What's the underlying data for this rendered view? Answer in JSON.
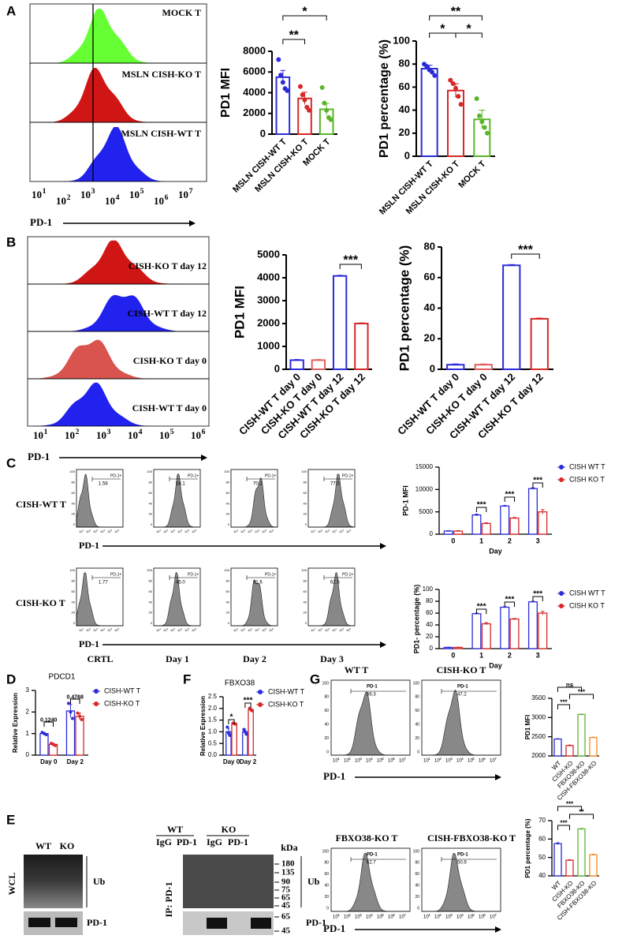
{
  "panel_labels": [
    "A",
    "B",
    "C",
    "D",
    "F",
    "G",
    "E"
  ],
  "flow": {
    "A": {
      "labels": [
        "MOCK T",
        "MSLN CISH-KO T",
        "MSLN CISH-WT T"
      ],
      "axis_label": "PD-1",
      "tick_base": "10",
      "tick_exps": [
        "1",
        "2",
        "3",
        "4",
        "5",
        "6",
        "7"
      ]
    },
    "B": {
      "labels": [
        "CISH-KO T day 12",
        "CISH-WT T day 12",
        "CISH-KO T day 0",
        "CISH-WT T day 0"
      ],
      "axis_label": "PD-1",
      "tick_base": "10",
      "tick_exps": [
        "1",
        "2",
        "3",
        "4",
        "5",
        "6"
      ]
    },
    "C": {
      "rows": [
        "CISH-WT T",
        "CISH-KO T"
      ],
      "columns": [
        "CRTL",
        "Day 1",
        "Day 2",
        "Day 3"
      ],
      "gate_label": "PD-1+",
      "gates": [
        [
          "1.58",
          "58.1",
          "70.2",
          "77.5"
        ],
        [
          "1.77",
          "45.0",
          "51.6",
          "62.5"
        ]
      ],
      "axis_label": "PD-1",
      "y_ticks": [
        "100",
        "80",
        "60",
        "40",
        "20",
        "0"
      ],
      "tick_base": "10",
      "tick_exps": [
        "1",
        "2",
        "3",
        "4",
        "5",
        "6"
      ]
    },
    "G": {
      "panels": [
        "WT T",
        "CISH-KO T",
        "FBXO38-KO T",
        "CISH-FBXO38-KO T"
      ],
      "gate_label": "PD-1",
      "gates": [
        "56.3",
        "47.2",
        "62.7",
        "50.9"
      ],
      "axis_label": "PD-1",
      "y_ticks": [
        "100",
        "80",
        "60",
        "40",
        "20",
        "0"
      ],
      "tick_base": "10",
      "tick_exps": [
        "1",
        "2",
        "3",
        "4",
        "5",
        "6",
        "7"
      ]
    }
  },
  "blot": {
    "left": {
      "lanes": [
        "WT",
        "KO"
      ],
      "side": "WCL",
      "upper": "Ub",
      "lower": "PD-1"
    },
    "right": {
      "groups": [
        "WT",
        "KO"
      ],
      "lanes": [
        "IgG",
        "PD-1",
        "IgG",
        "PD-1"
      ],
      "unit": "kDa",
      "upper_markers": [
        "180",
        "135",
        "90",
        "75",
        "65",
        "45"
      ],
      "lower_markers": [
        "65",
        "45"
      ],
      "side": "IP: PD-1",
      "upper": "Ub",
      "lower": "PD-1"
    }
  },
  "chart_data": [
    {
      "type": "bar",
      "ylabel": "PD1 MFI",
      "categories": [
        "MSLN CISH-WT T",
        "MSLN CISH-KO T",
        "MOCK T"
      ],
      "colors": [
        "#2b2bd9",
        "#d62828",
        "#5ab52a"
      ],
      "values": [
        5500,
        3450,
        2400
      ],
      "errors": [
        650,
        600,
        550
      ],
      "points": [
        [
          7200,
          5700,
          5000,
          4400,
          4200
        ],
        [
          4600,
          3800,
          3300,
          2600,
          2300
        ],
        [
          4500,
          3000,
          2300,
          1600,
          1400
        ]
      ],
      "ylim": [
        0,
        8000
      ],
      "yticks": [
        0,
        2000,
        4000,
        6000,
        8000
      ],
      "annotations": [
        "**",
        "*"
      ]
    },
    {
      "type": "bar",
      "ylabel": "PD1 percentage (%)",
      "categories": [
        "MSLN CISH-WT T",
        "MSLN CISH-KO T",
        "MOCK T"
      ],
      "colors": [
        "#2b2bd9",
        "#d62828",
        "#5ab52a"
      ],
      "values": [
        76,
        57,
        32
      ],
      "errors": [
        3,
        6,
        8
      ],
      "points": [
        [
          80,
          78,
          75,
          73,
          70
        ],
        [
          66,
          63,
          59,
          52,
          45
        ],
        [
          50,
          35,
          30,
          25,
          20
        ]
      ],
      "ylim": [
        0,
        100
      ],
      "yticks": [
        0,
        20,
        40,
        60,
        80,
        100
      ],
      "annotations": [
        "*",
        "*",
        "**"
      ]
    },
    {
      "type": "bar",
      "ylabel": "PD1 MFI",
      "categories": [
        "CISH-WT T day 0",
        "CISH-KO T day 0",
        "CISH-WT T day 12",
        "CISH-KO T day 12"
      ],
      "colors": [
        "#2b2bd9",
        "#e06060",
        "#2b2bd9",
        "#d62828"
      ],
      "values": [
        400,
        400,
        4080,
        2000
      ],
      "errors": [
        30,
        30,
        30,
        30
      ],
      "ylim": [
        0,
        5000
      ],
      "yticks": [
        0,
        1000,
        2000,
        3000,
        4000,
        5000
      ],
      "annotations": [
        "***"
      ]
    },
    {
      "type": "bar",
      "ylabel": "PD1 percentage (%)",
      "categories": [
        "CISH-WT T day 0",
        "CISH-KO T day 0",
        "CISH-WT T day 12",
        "CISH-KO T day 12"
      ],
      "colors": [
        "#2b2bd9",
        "#e06060",
        "#2b2bd9",
        "#d62828"
      ],
      "values": [
        3,
        3,
        68,
        33
      ],
      "errors": [
        0.5,
        0.5,
        0.5,
        0.5
      ],
      "ylim": [
        0,
        80
      ],
      "yticks": [
        0,
        20,
        40,
        60,
        80
      ],
      "annotations": [
        "***"
      ]
    },
    {
      "type": "bar",
      "ylabel": "PD-1 MFI",
      "xlabel": "Day",
      "categories": [
        "0",
        "1",
        "2",
        "3"
      ],
      "series": [
        {
          "name": "CISH WT T",
          "color": "#2b2bd9",
          "values": [
            700,
            4300,
            6300,
            10200
          ],
          "errors": [
            100,
            200,
            150,
            200
          ]
        },
        {
          "name": "CISH KO T",
          "color": "#d62828",
          "values": [
            700,
            2400,
            3600,
            5000
          ],
          "errors": [
            100,
            150,
            150,
            500
          ]
        }
      ],
      "ylim": [
        0,
        15000
      ],
      "yticks": [
        0,
        5000,
        10000,
        15000
      ],
      "annotations": [
        "***",
        "***",
        "***"
      ]
    },
    {
      "type": "bar",
      "ylabel": "PD1- percentage (%)",
      "xlabel": "Day",
      "categories": [
        "0",
        "1",
        "2",
        "3"
      ],
      "series": [
        {
          "name": "CISH WT T",
          "color": "#2b2bd9",
          "values": [
            2,
            59,
            70,
            79
          ],
          "errors": [
            0.5,
            1,
            1,
            1
          ]
        },
        {
          "name": "CISH KO T",
          "color": "#d62828",
          "values": [
            2,
            42,
            50,
            60
          ],
          "errors": [
            0.5,
            2,
            1,
            3
          ]
        }
      ],
      "ylim": [
        0,
        100
      ],
      "yticks": [
        0,
        20,
        40,
        60,
        80,
        100
      ],
      "annotations": [
        "***",
        "***",
        "***"
      ]
    },
    {
      "type": "bar",
      "title": "PDCD1",
      "ylabel": "Relative Expression",
      "categories": [
        "Day 0",
        "Day 2"
      ],
      "series": [
        {
          "name": "CISH-WT T",
          "color": "#2b2bd9",
          "values": [
            1.0,
            2.05
          ],
          "errors": [
            0.05,
            0.3
          ],
          "points": [
            [
              1.05,
              1.0,
              0.95
            ],
            [
              2.4,
              2.0,
              1.7
            ]
          ]
        },
        {
          "name": "CISH-KO T",
          "color": "#d62828",
          "values": [
            0.5,
            1.8
          ],
          "errors": [
            0.05,
            0.15
          ],
          "points": [
            [
              0.55,
              0.5,
              0.45
            ],
            [
              1.95,
              1.8,
              1.65
            ]
          ]
        }
      ],
      "ylim": [
        0,
        3
      ],
      "yticks": [
        0,
        1,
        2,
        3
      ],
      "annotations": [
        "0.1240",
        "0.4768"
      ]
    },
    {
      "type": "bar",
      "title": "FBXO38",
      "ylabel": "Relative Expression",
      "categories": [
        "Day 0",
        "Day 2"
      ],
      "series": [
        {
          "name": "CISH-WT T",
          "color": "#2b2bd9",
          "values": [
            1.0,
            1.0
          ],
          "errors": [
            0.15,
            0.12
          ],
          "points": [
            [
              1.2,
              0.95,
              0.85
            ],
            [
              1.1,
              1.0,
              0.9
            ]
          ]
        },
        {
          "name": "CISH-KO T",
          "color": "#d62828",
          "values": [
            1.35,
            1.95
          ],
          "errors": [
            0.03,
            0.05
          ],
          "points": [
            [
              1.37,
              1.35,
              1.33
            ],
            [
              2.0,
              1.95,
              1.9
            ]
          ]
        }
      ],
      "ylim": [
        0,
        2.5
      ],
      "yticks": [
        {
          "value": 0,
          "label": "0.0"
        },
        0.5,
        {
          "value": 1,
          "label": "1.0"
        },
        1.5,
        {
          "value": 2,
          "label": "2.0"
        },
        2.5
      ],
      "annotations": [
        "*",
        "***"
      ]
    },
    {
      "type": "bar",
      "ylabel": "PD1 MFI",
      "categories": [
        "WT",
        "CISH-KO",
        "FBXO38-KO",
        "CISH-FBXO38-KO"
      ],
      "colors": [
        "#2b2bd9",
        "#d62828",
        "#5ab52a",
        "#f08a24"
      ],
      "values": [
        2440,
        2270,
        3080,
        2480
      ],
      "errors": [
        10,
        15,
        10,
        10
      ],
      "ylim": [
        2000,
        3500
      ],
      "yticks": [
        2000,
        2500,
        3000,
        3500
      ],
      "annotations": [
        "ns",
        "***",
        "***"
      ]
    },
    {
      "type": "bar",
      "ylabel": "PD1 percentage (%)",
      "categories": [
        "WT",
        "CISH-KO",
        "FBXO38-KO",
        "CISH-FBXO38-KO"
      ],
      "colors": [
        "#2b2bd9",
        "#d62828",
        "#5ab52a",
        "#f08a24"
      ],
      "values": [
        57.5,
        48.5,
        65.5,
        51.5
      ],
      "errors": [
        0.5,
        0.3,
        0.3,
        0.3
      ],
      "ylim": [
        40,
        70
      ],
      "yticks": [
        40,
        50,
        60,
        70
      ],
      "annotations": [
        "***",
        "**",
        "***"
      ]
    }
  ]
}
